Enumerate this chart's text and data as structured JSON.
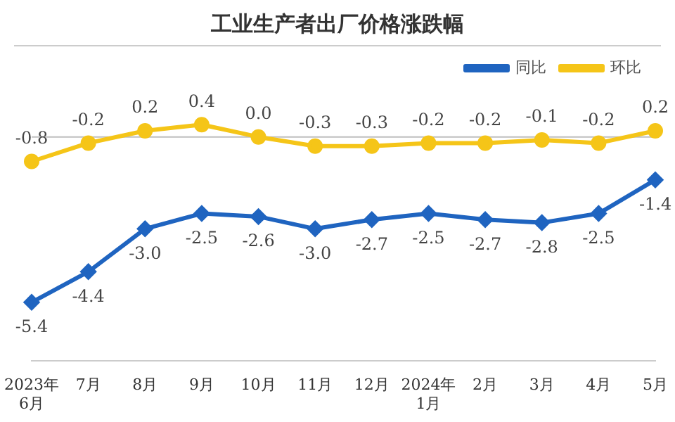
{
  "chart_data": {
    "type": "line",
    "title": "工业生产者出厂价格涨跌幅",
    "categories": [
      "2023年6月",
      "7月",
      "8月",
      "9月",
      "10月",
      "11月",
      "12月",
      "2024年1月",
      "2月",
      "3月",
      "4月",
      "5月"
    ],
    "series": [
      {
        "name": "同比",
        "color": "#1f64c0",
        "marker": "diamond",
        "values": [
          -5.4,
          -4.4,
          -3.0,
          -2.5,
          -2.6,
          -3.0,
          -2.7,
          -2.5,
          -2.7,
          -2.8,
          -2.5,
          -1.4
        ],
        "value_labels": [
          "-5.4",
          "-4.4",
          "-3.0",
          "-2.5",
          "-2.6",
          "-3.0",
          "-2.7",
          "-2.5",
          "-2.7",
          "-2.8",
          "-2.5",
          "-1.4"
        ]
      },
      {
        "name": "环比",
        "color": "#f5c518",
        "marker": "circle",
        "values": [
          -0.8,
          -0.2,
          0.2,
          0.4,
          0.0,
          -0.3,
          -0.3,
          -0.2,
          -0.2,
          -0.1,
          -0.2,
          0.2
        ],
        "value_labels": [
          "-0.8",
          "-0.2",
          "0.2",
          "0.4",
          "0.0",
          "-0.3",
          "-0.3",
          "-0.2",
          "-0.2",
          "-0.1",
          "-0.2",
          "0.2"
        ]
      }
    ],
    "legend": "top right",
    "line_style": "solid",
    "ref_lines": [
      {
        "axis": "y",
        "value": 0,
        "color": "#bfbfbf"
      }
    ]
  }
}
